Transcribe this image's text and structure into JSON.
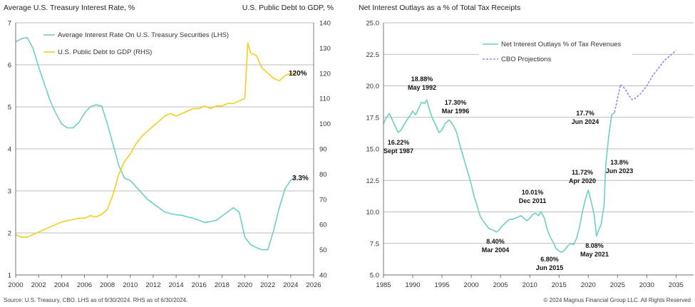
{
  "left_chart": {
    "title_left": "Average U.S. Treasury Interest Rate, %",
    "title_right": "U.S. Public Debt to GDP, %",
    "legend": [
      {
        "label": "Average Interest Rate On U.S. Treasury Securities (LHS)",
        "color": "#6ccfc4"
      },
      {
        "label": "U.S. Public Debt to GDP (RHS)",
        "color": "#f2cf1c"
      }
    ],
    "end_labels": {
      "rate": "3.3%",
      "debt": "120%"
    }
  },
  "right_chart": {
    "title": "Net Interest Outlays as a % of Total Tax Receipts",
    "legend": [
      {
        "label": "Net Interest Outlays % of Tax Revenues",
        "color": "#6ccfc4"
      },
      {
        "label": "CBO Projections",
        "color": "#8a8af0"
      }
    ],
    "annotations": [
      {
        "value": "18.88%",
        "date": "May 1992"
      },
      {
        "value": "17.30%",
        "date": "Mar 1996"
      },
      {
        "value": "16.22%",
        "date": "Sept 1987"
      },
      {
        "value": "17.7%",
        "date": "Jun 2024"
      },
      {
        "value": "13.8%",
        "date": "Jun 2023"
      },
      {
        "value": "11.72%",
        "date": "Apr 2020"
      },
      {
        "value": "10.01%",
        "date": "Dec 2011"
      },
      {
        "value": "8.40%",
        "date": "Mar 2004"
      },
      {
        "value": "6.80%",
        "date": "Jun 2015"
      },
      {
        "value": "8.08%",
        "date": "May 2021"
      }
    ]
  },
  "footer": {
    "source": "Source: U.S. Treasury, CBO. LHS as of 9/30/2024. RHS as of 6/30/2024.",
    "copyright": "© 2024 Magnus Financial Group LLC. All Rights Reserved"
  },
  "chart_data": [
    {
      "type": "line",
      "title": "Average U.S. Treasury Interest Rate, % / U.S. Public Debt to GDP, %",
      "xlabel": "",
      "xlim": [
        2000,
        2026
      ],
      "x_ticks": [
        "2000",
        "2002",
        "2004",
        "2006",
        "2008",
        "2010",
        "2012",
        "2014",
        "2016",
        "2018",
        "2020",
        "2022",
        "2024",
        "2026"
      ],
      "left_axis": {
        "label": "Average U.S. Treasury Interest Rate, %",
        "ylim": [
          1,
          7
        ],
        "ticks": [
          "1",
          "2",
          "3",
          "4",
          "5",
          "6",
          "7"
        ]
      },
      "right_axis": {
        "label": "U.S. Public Debt to GDP, %",
        "ylim": [
          40,
          140
        ],
        "ticks": [
          "40",
          "50",
          "60",
          "70",
          "80",
          "90",
          "100",
          "110",
          "120",
          "130",
          "140"
        ]
      },
      "series": [
        {
          "name": "Average Interest Rate On U.S. Treasury Securities (LHS)",
          "axis": "left",
          "color": "#6ccfc4",
          "x": [
            2000,
            2000.5,
            2001,
            2001.5,
            2002,
            2002.5,
            2003,
            2003.5,
            2004,
            2004.5,
            2005,
            2005.5,
            2006,
            2006.5,
            2007,
            2007.5,
            2008,
            2008.5,
            2009,
            2009.5,
            2010,
            2010.5,
            2011,
            2011.5,
            2012,
            2012.5,
            2013,
            2013.5,
            2014,
            2014.5,
            2015,
            2015.5,
            2016,
            2016.5,
            2017,
            2017.5,
            2018,
            2018.5,
            2019,
            2019.5,
            2020,
            2020.5,
            2021,
            2021.5,
            2022,
            2022.5,
            2023,
            2023.5,
            2024,
            2024.5
          ],
          "y": [
            6.55,
            6.62,
            6.65,
            6.4,
            5.95,
            5.55,
            5.15,
            4.85,
            4.6,
            4.5,
            4.5,
            4.62,
            4.85,
            5.0,
            5.05,
            5.02,
            4.6,
            4.1,
            3.6,
            3.3,
            3.25,
            3.1,
            2.95,
            2.8,
            2.7,
            2.6,
            2.5,
            2.46,
            2.43,
            2.42,
            2.38,
            2.35,
            2.3,
            2.25,
            2.27,
            2.3,
            2.4,
            2.5,
            2.6,
            2.5,
            1.9,
            1.72,
            1.65,
            1.6,
            1.6,
            2.05,
            2.6,
            3.05,
            3.25,
            3.35
          ]
        },
        {
          "name": "U.S. Public Debt to GDP (RHS)",
          "axis": "right",
          "color": "#f2cf1c",
          "x": [
            2000,
            2000.5,
            2001,
            2001.5,
            2002,
            2002.5,
            2003,
            2003.5,
            2004,
            2004.5,
            2005,
            2005.5,
            2006,
            2006.5,
            2007,
            2007.5,
            2008,
            2008.5,
            2009,
            2009.5,
            2010,
            2010.5,
            2011,
            2011.5,
            2012,
            2012.5,
            2013,
            2013.5,
            2014,
            2014.5,
            2015,
            2015.5,
            2016,
            2016.5,
            2017,
            2017.5,
            2018,
            2018.5,
            2019,
            2019.5,
            2020,
            2020.25,
            2020.5,
            2021,
            2021.5,
            2022,
            2022.5,
            2023,
            2023.5,
            2024,
            2024.5
          ],
          "y": [
            56,
            55,
            55,
            56,
            57,
            58,
            59,
            60,
            61,
            61.5,
            62,
            62.5,
            62.5,
            63.5,
            63,
            64,
            66,
            72,
            80,
            85,
            88,
            92,
            95,
            97,
            99,
            101,
            103,
            104,
            103,
            104,
            105,
            106,
            106,
            107,
            106,
            107,
            107,
            108,
            108,
            109,
            110,
            132,
            128,
            127,
            122,
            120,
            118,
            117,
            119,
            120,
            120
          ]
        }
      ]
    },
    {
      "type": "line",
      "title": "Net Interest Outlays as a % of Total Tax Receipts",
      "xlabel": "",
      "xlim": [
        1985,
        2038
      ],
      "x_ticks": [
        "1985",
        "1990",
        "1995",
        "2000",
        "2005",
        "2010",
        "2015",
        "2020",
        "2025",
        "2030",
        "2035"
      ],
      "ylim": [
        5.0,
        25.0
      ],
      "y_ticks": [
        "5.0",
        "7.5",
        "10.0",
        "12.5",
        "15.0",
        "17.5",
        "20.0",
        "22.5",
        "25.0"
      ],
      "series": [
        {
          "name": "Net Interest Outlays % of Tax Revenues",
          "color": "#6ccfc4",
          "style": "solid",
          "x": [
            1985,
            1985.5,
            1986,
            1986.5,
            1987,
            1987.5,
            1988,
            1988.5,
            1989,
            1989.5,
            1990,
            1990.5,
            1991,
            1991.5,
            1992,
            1992.4,
            1992.8,
            1993.3,
            1994,
            1994.5,
            1995,
            1995.5,
            1996,
            1996.2,
            1996.6,
            1997,
            1997.5,
            1998,
            1998.5,
            1999,
            1999.5,
            2000,
            2000.5,
            2001,
            2001.5,
            2002,
            2002.5,
            2003,
            2003.5,
            2004,
            2004.3,
            2004.8,
            2005.3,
            2006,
            2006.5,
            2007,
            2007.5,
            2008,
            2008.5,
            2009,
            2009.5,
            2010,
            2010.5,
            2011,
            2011.5,
            2011.9,
            2012.5,
            2013,
            2013.5,
            2014,
            2014.5,
            2015,
            2015.5,
            2016,
            2016.5,
            2017,
            2017.5,
            2018,
            2018.5,
            2019,
            2019.5,
            2020,
            2020.3,
            2020.6,
            2021,
            2021.4,
            2021.8,
            2022.2,
            2022.7,
            2023,
            2023.5,
            2024,
            2024.5
          ],
          "y": [
            17.0,
            17.5,
            17.8,
            17.3,
            16.8,
            16.3,
            16.5,
            16.9,
            17.3,
            17.6,
            18.0,
            17.7,
            18.2,
            18.7,
            18.6,
            18.88,
            18.2,
            17.5,
            16.8,
            16.3,
            16.5,
            17.0,
            17.2,
            17.3,
            17.1,
            16.8,
            16.3,
            15.4,
            14.6,
            13.8,
            13.0,
            12.2,
            11.2,
            10.5,
            9.7,
            9.3,
            9.0,
            8.7,
            8.6,
            8.5,
            8.4,
            8.6,
            8.9,
            9.2,
            9.4,
            9.4,
            9.5,
            9.6,
            9.7,
            9.5,
            9.3,
            9.5,
            9.8,
            9.9,
            9.7,
            10.01,
            9.5,
            8.6,
            8.0,
            7.6,
            7.1,
            6.9,
            6.8,
            7.0,
            7.3,
            7.5,
            7.4,
            7.9,
            8.8,
            10.0,
            11.0,
            11.72,
            11.2,
            10.6,
            9.8,
            8.08,
            8.6,
            9.0,
            10.5,
            13.8,
            16.0,
            17.7,
            17.9
          ]
        },
        {
          "name": "CBO Projections",
          "color": "#8a8af0",
          "style": "dashed",
          "x": [
            2024.5,
            2025,
            2025.5,
            2026,
            2026.5,
            2027,
            2027.5,
            2028,
            2029,
            2030,
            2031,
            2032,
            2033,
            2034,
            2035
          ],
          "y": [
            17.9,
            19.0,
            20.1,
            19.9,
            19.6,
            19.2,
            18.9,
            19.0,
            19.4,
            20.0,
            20.8,
            21.4,
            22.0,
            22.4,
            22.8
          ]
        }
      ]
    }
  ]
}
